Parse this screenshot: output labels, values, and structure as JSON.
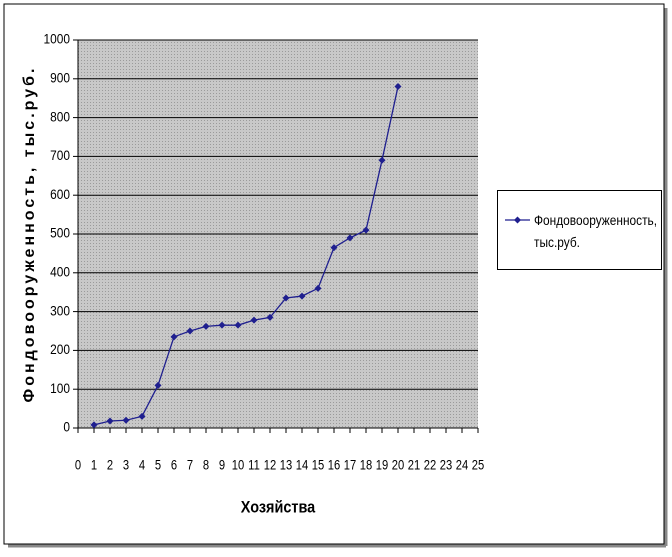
{
  "chart_data": {
    "type": "line",
    "x_label": "Хозяйства",
    "y_label": "Фондовооруженность, тыс.руб.",
    "x": [
      1,
      2,
      3,
      4,
      5,
      6,
      7,
      8,
      9,
      10,
      11,
      12,
      13,
      14,
      15,
      16,
      17,
      18,
      19,
      20
    ],
    "series": [
      {
        "name": "Фондовооруженность, тыс.руб.",
        "color": "#1f1f8f",
        "values": [
          8,
          18,
          20,
          30,
          110,
          235,
          250,
          262,
          265,
          265,
          278,
          285,
          335,
          340,
          360,
          465,
          490,
          510,
          690,
          880
        ]
      }
    ],
    "xlim": [
      0,
      25
    ],
    "xticks": [
      0,
      1,
      2,
      3,
      4,
      5,
      6,
      7,
      8,
      9,
      10,
      11,
      12,
      13,
      14,
      15,
      16,
      17,
      18,
      19,
      20,
      21,
      22,
      23,
      24,
      25
    ],
    "ylim": [
      0,
      1000
    ],
    "yticks": [
      0,
      100,
      200,
      300,
      400,
      500,
      600,
      700,
      800,
      900,
      1000
    ],
    "grid": true,
    "legend": "right"
  }
}
